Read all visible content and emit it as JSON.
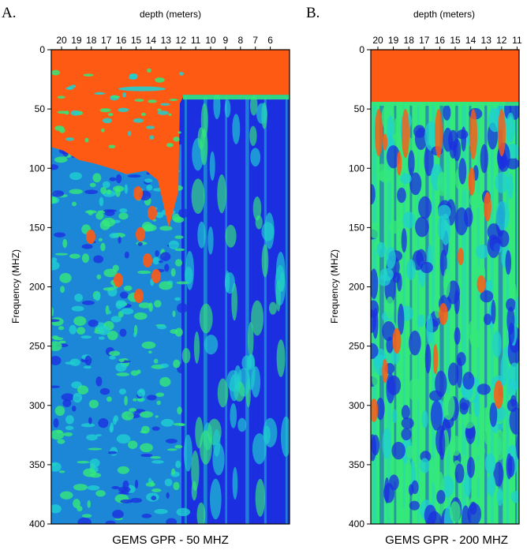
{
  "chart_data": [
    {
      "type": "heatmap",
      "panel_label": "A.",
      "xlabel": "depth (meters)",
      "ylabel": "Frequency (MHZ)",
      "caption": "GEMS GPR - 50 MHZ",
      "x_ticks": [
        20,
        19,
        18,
        17,
        16,
        15,
        14,
        13,
        12,
        11,
        10,
        9,
        8,
        7,
        6
      ],
      "y_ticks": [
        0,
        50,
        100,
        150,
        200,
        250,
        300,
        350,
        400
      ],
      "ylim": [
        0,
        400
      ],
      "y_inverted": true,
      "colors": {
        "high": "#ff5a14",
        "mid": "#34e87a",
        "low": "#1b2fe0",
        "mid_low": "#1fd0d0"
      }
    },
    {
      "type": "heatmap",
      "panel_label": "B.",
      "xlabel": "depth (meters)",
      "ylabel": "Frequency (MHZ)",
      "caption": "GEMS GPR - 200 MHZ",
      "x_ticks": [
        20,
        19,
        18,
        17,
        16,
        15,
        14,
        13,
        12,
        11
      ],
      "y_ticks": [
        0,
        50,
        100,
        150,
        200,
        250,
        300,
        350,
        400
      ],
      "ylim": [
        0,
        400
      ],
      "y_inverted": true,
      "colors": {
        "high": "#ff5a14",
        "mid": "#34e87a",
        "low": "#1b2fe0",
        "mid_low": "#1fd0d0"
      }
    }
  ]
}
